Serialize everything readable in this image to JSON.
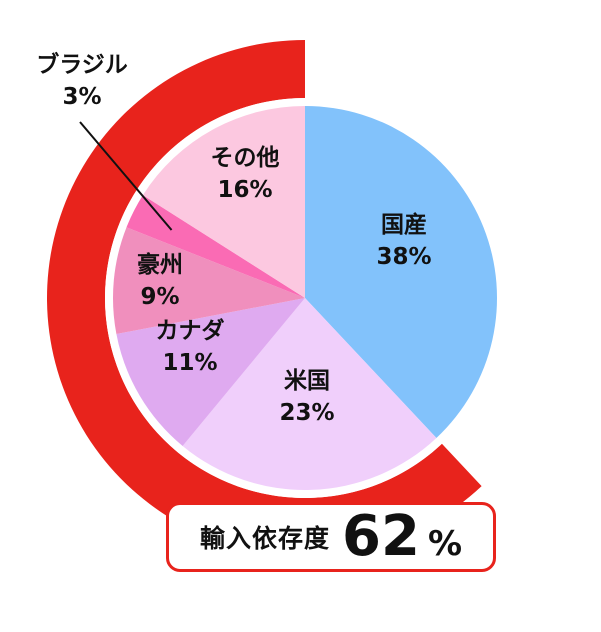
{
  "chart_data": {
    "type": "pie",
    "title": "",
    "slices": [
      {
        "label": "国産",
        "value": 38,
        "value_label": "38%",
        "color": "#82c2fb"
      },
      {
        "label": "米国",
        "value": 23,
        "value_label": "23%",
        "color": "#f0cffb"
      },
      {
        "label": "カナダ",
        "value": 11,
        "value_label": "11%",
        "color": "#dfaaf0"
      },
      {
        "label": "豪州",
        "value": 9,
        "value_label": "9%",
        "color": "#f08fbd"
      },
      {
        "label": "ブラジル",
        "value": 3,
        "value_label": "3%",
        "color": "#fa6bb4"
      },
      {
        "label": "その他",
        "value": 16,
        "value_label": "16%",
        "color": "#fcc8e0"
      }
    ],
    "import_ring": {
      "fraction": 0.62,
      "color": "#e8231c"
    }
  },
  "badge": {
    "label": "輸入依存度",
    "value": "62",
    "unit": "%"
  }
}
